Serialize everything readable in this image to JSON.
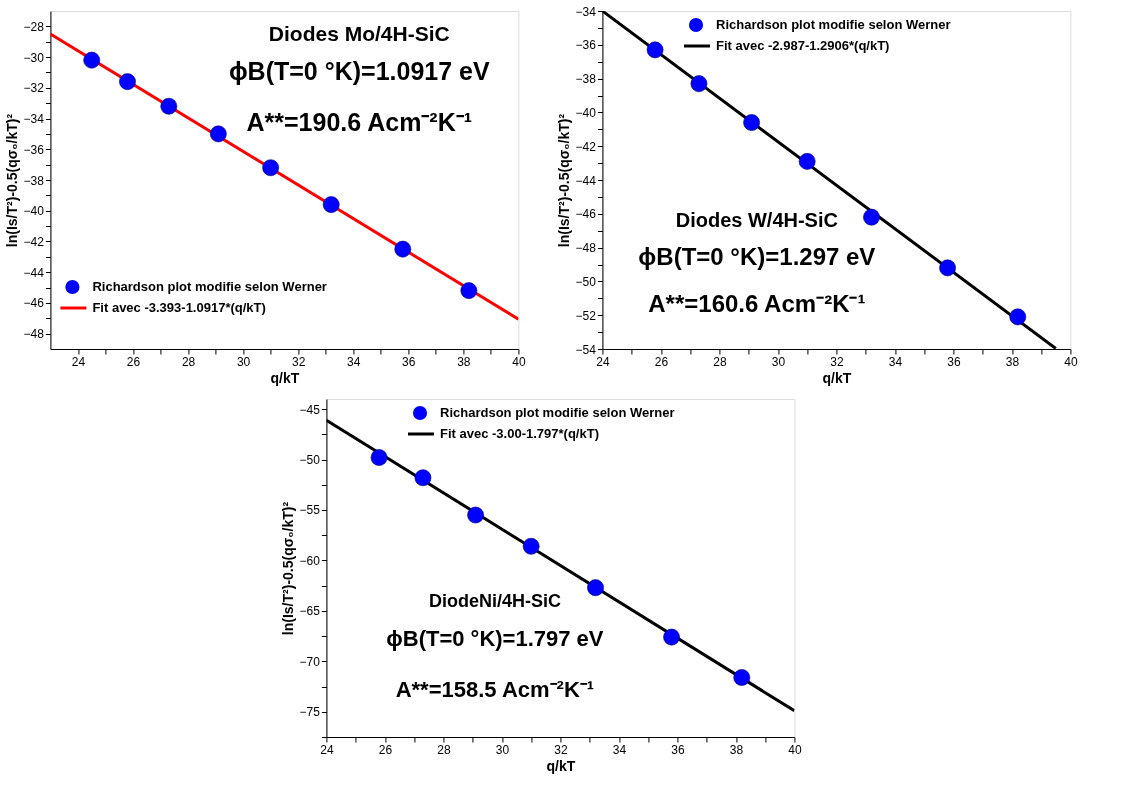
{
  "chart_data": [
    {
      "type": "scatter",
      "xlabel": "q/kT",
      "ylabel": "ln(Is/T²)-0.5(qσ₀/kT)²",
      "xlim": [
        23,
        40
      ],
      "ylim": [
        -49,
        -27
      ],
      "xticks": [
        24,
        {
          "value": 25,
          "label": null
        },
        26,
        {
          "value": 27,
          "label": null
        },
        28,
        {
          "value": 29,
          "label": null
        },
        30,
        {
          "value": 31,
          "label": null
        },
        32,
        {
          "value": 33,
          "label": null
        },
        34,
        {
          "value": 35,
          "label": null
        },
        36,
        {
          "value": 37,
          "label": null
        },
        38,
        {
          "value": 39,
          "label": null
        },
        40
      ],
      "yticks": [
        -48,
        {
          "value": -47,
          "label": null
        },
        -46,
        {
          "value": -45,
          "label": null
        },
        -44,
        {
          "value": -43,
          "label": null
        },
        -42,
        {
          "value": -41,
          "label": null
        },
        -40,
        {
          "value": -39,
          "label": null
        },
        -38,
        {
          "value": -37,
          "label": null
        },
        -36,
        {
          "value": -35,
          "label": null
        },
        -34,
        {
          "value": -33,
          "label": null
        },
        -32,
        {
          "value": -31,
          "label": null
        },
        -30,
        {
          "value": -29,
          "label": null
        },
        -28
      ],
      "annotations": [
        "Diodes Mo/4H-SiC",
        "ϕB(T=0 °K)=1.0917 eV",
        "A**=190.6 Acm⁻²K⁻¹"
      ],
      "legend": "bottom left",
      "grid": false,
      "series": [
        {
          "name": "Richardson plot modifie selon Werner",
          "marker": "circle",
          "color": "#0000ff",
          "x": [
            24.5,
            25.8,
            27.3,
            29.1,
            31.0,
            33.2,
            35.8,
            38.2
          ],
          "values": [
            -30.2,
            -31.6,
            -33.2,
            -35.0,
            -37.2,
            -39.6,
            -42.5,
            -45.2
          ]
        },
        {
          "name": "Fit avec -3.393-1.0917*(q/kT)",
          "type": "line",
          "marker": "none",
          "color": "#ff0000",
          "x": [
            23,
            40
          ],
          "values": [
            -28.5,
            -47.06
          ]
        }
      ]
    },
    {
      "type": "scatter",
      "xlabel": "q/kT",
      "ylabel": "ln(Is/T²)-0.5(qσ₀/kT)²",
      "xlim": [
        24,
        40
      ],
      "ylim": [
        -54,
        -34
      ],
      "xticks": [
        24,
        {
          "value": 25,
          "label": null
        },
        26,
        {
          "value": 27,
          "label": null
        },
        28,
        {
          "value": 29,
          "label": null
        },
        30,
        {
          "value": 31,
          "label": null
        },
        32,
        {
          "value": 33,
          "label": null
        },
        34,
        {
          "value": 35,
          "label": null
        },
        36,
        {
          "value": 37,
          "label": null
        },
        38,
        {
          "value": 39,
          "label": null
        },
        40
      ],
      "yticks": [
        -54,
        {
          "value": -53,
          "label": null
        },
        -52,
        {
          "value": -51,
          "label": null
        },
        -50,
        {
          "value": -49,
          "label": null
        },
        -48,
        {
          "value": -47,
          "label": null
        },
        -46,
        {
          "value": -45,
          "label": null
        },
        -44,
        {
          "value": -43,
          "label": null
        },
        -42,
        {
          "value": -41,
          "label": null
        },
        -40,
        {
          "value": -39,
          "label": null
        },
        -38,
        {
          "value": -37,
          "label": null
        },
        -36,
        {
          "value": -35,
          "label": null
        },
        -34
      ],
      "annotations": [
        "Diodes W/4H-SiC",
        "ϕB(T=0 °K)=1.297 eV",
        "A**=160.6 Acm⁻²K⁻¹"
      ],
      "legend": "top",
      "grid": false,
      "series": [
        {
          "name": "Richardson plot modifie selon Werner",
          "marker": "circle",
          "color": "#0000ff",
          "x": [
            25.8,
            27.3,
            29.1,
            31.0,
            33.2,
            35.8,
            38.2
          ],
          "values": [
            -36.3,
            -38.3,
            -40.6,
            -42.9,
            -46.2,
            -49.2,
            -52.1
          ]
        },
        {
          "name": "Fit avec -2.987-1.2906*(q/kT)",
          "type": "line",
          "marker": "none",
          "color": "#000000",
          "x": [
            24,
            39.5
          ],
          "values": [
            -34.0,
            -53.97
          ]
        }
      ]
    },
    {
      "type": "scatter",
      "xlabel": "q/kT",
      "ylabel": "ln(Is/T²)-0.5(qσ₀/kT)²",
      "xlim": [
        24,
        40
      ],
      "ylim": [
        -77.5,
        -44
      ],
      "xticks": [
        24,
        {
          "value": 25,
          "label": null
        },
        26,
        {
          "value": 27,
          "label": null
        },
        28,
        {
          "value": 29,
          "label": null
        },
        30,
        {
          "value": 31,
          "label": null
        },
        32,
        {
          "value": 33,
          "label": null
        },
        34,
        {
          "value": 35,
          "label": null
        },
        36,
        {
          "value": 37,
          "label": null
        },
        38,
        {
          "value": 39,
          "label": null
        },
        40
      ],
      "yticks": [
        {
          "value": -77.5,
          "label": null
        },
        -75,
        {
          "value": -72.5,
          "label": null
        },
        -70,
        {
          "value": -67.5,
          "label": null
        },
        -65,
        {
          "value": -62.5,
          "label": null
        },
        -60,
        {
          "value": -57.5,
          "label": null
        },
        -55,
        {
          "value": -52.5,
          "label": null
        },
        -50,
        {
          "value": -47.5,
          "label": null
        },
        -45
      ],
      "annotations": [
        "DiodeNi/4H-SiC",
        "ϕB(T=0 °K)=1.797 eV",
        "A**=158.5  Acm⁻²K⁻¹"
      ],
      "legend": "top",
      "grid": false,
      "series": [
        {
          "name": "Richardson plot modifie selon Werner",
          "marker": "circle",
          "color": "#0000ff",
          "x": [
            25.8,
            27.3,
            29.1,
            31.0,
            33.2,
            35.8,
            38.2
          ],
          "values": [
            -49.8,
            -51.8,
            -55.5,
            -58.6,
            -62.7,
            -67.6,
            -71.6
          ]
        },
        {
          "name": "Fit avec -3.00-1.797*(q/kT)",
          "type": "line",
          "marker": "none",
          "color": "#000000",
          "x": [
            24,
            40
          ],
          "values": [
            -46.1,
            -74.9
          ]
        }
      ]
    }
  ]
}
